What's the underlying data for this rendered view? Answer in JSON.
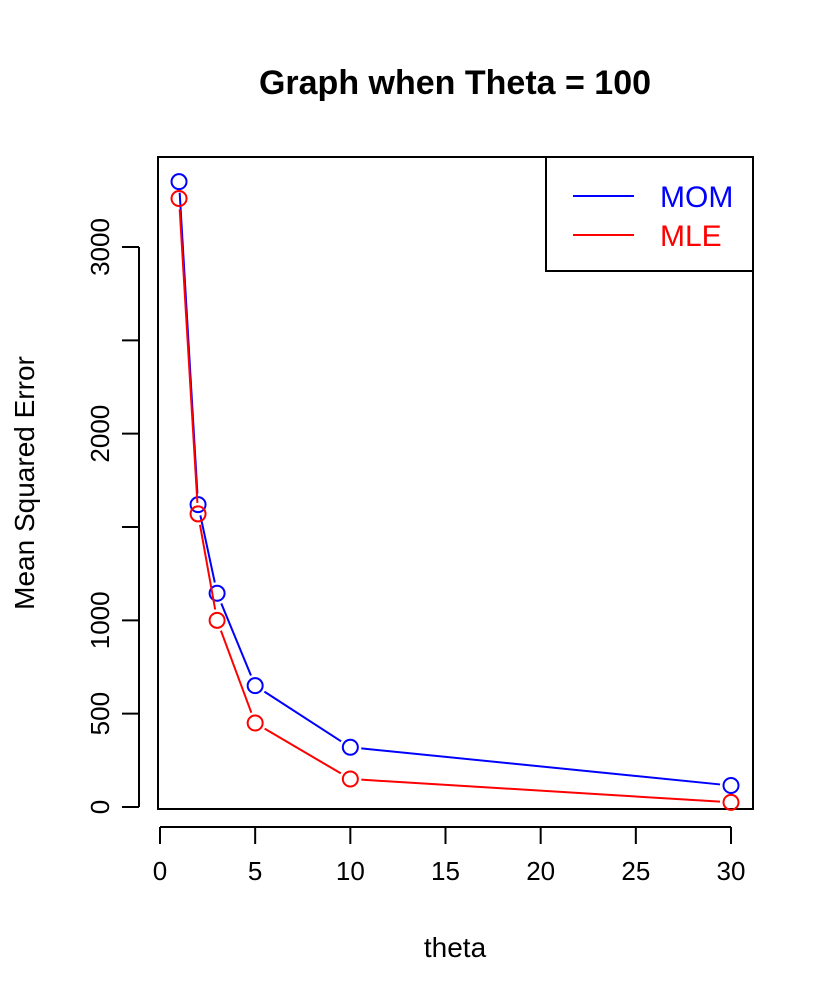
{
  "chart_data": {
    "type": "line",
    "title": "Graph when Theta = 100",
    "xlabel": "theta",
    "ylabel": "Mean Squared Error",
    "x": [
      1,
      2,
      3,
      5,
      10,
      30
    ],
    "xlim": [
      0,
      31
    ],
    "ylim": [
      0,
      3450
    ],
    "xticks": [
      0,
      5,
      10,
      15,
      20,
      25,
      30
    ],
    "yticks": [
      0,
      500,
      1000,
      1500,
      2000,
      2500,
      3000
    ],
    "ytick_labels": [
      "0",
      "500",
      "1000",
      "",
      "2000",
      "",
      "3000"
    ],
    "series": [
      {
        "name": "MOM",
        "color": "#0000ff",
        "values": [
          3350,
          1620,
          1145,
          650,
          320,
          115
        ]
      },
      {
        "name": "MLE",
        "color": "#ff0000",
        "values": [
          3260,
          1570,
          1000,
          450,
          150,
          25
        ]
      }
    ],
    "legend_position": "top-right",
    "grid": false
  }
}
